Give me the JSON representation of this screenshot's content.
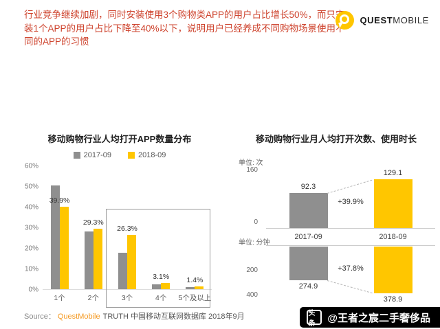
{
  "header": {
    "headline": "行业竞争继续加剧，同时安装使用3个购物类APP的用户占比增长50%，而只安装1个APP的用户占比下降至40%以下，说明用户已经养成不同购物场景使用不同的APP的习惯",
    "logo": {
      "brand_bold": "QUEST",
      "brand_light": "MOBILE"
    }
  },
  "colors": {
    "accent_yellow": "#FFC600",
    "bar_gray": "#8F8F8F",
    "headline_red": "#CE432D",
    "source_brand_orange": "#F59A23"
  },
  "chart_data": [
    {
      "type": "bar",
      "title": "移动购物行业人均打开APP数量分布",
      "categories": [
        "1个",
        "2个",
        "3个",
        "4个",
        "5个及以上"
      ],
      "series": [
        {
          "name": "2017-09",
          "color": "#8F8F8F",
          "values": [
            50.2,
            28.0,
            17.7,
            2.4,
            0.9
          ]
        },
        {
          "name": "2018-09",
          "color": "#FFC600",
          "values": [
            39.9,
            29.3,
            26.3,
            3.1,
            1.4
          ],
          "labels": [
            "39.9%",
            "29.3%",
            "26.3%",
            "3.1%",
            "1.4%"
          ]
        }
      ],
      "y_ticks": [
        "60%",
        "50%",
        "40%",
        "30%",
        "20%",
        "10%",
        "0%"
      ],
      "ylim": [
        0,
        60
      ],
      "grid": false,
      "legend_position": "top",
      "highlight_categories": [
        "3个",
        "4个",
        "5个及以上"
      ]
    },
    {
      "type": "bar",
      "title": "移动购物行业月人均打开次数、使用时长",
      "categories": [
        "2017-09",
        "2018-09"
      ],
      "top": {
        "unit": "单位: 次",
        "ticks": [
          "160",
          "0"
        ],
        "ylim": [
          0,
          160
        ],
        "values": [
          92.3,
          129.1
        ],
        "labels": [
          "92.3",
          "129.1"
        ],
        "growth": "+39.9%"
      },
      "bottom": {
        "unit": "单位: 分钟",
        "ticks": [
          "200",
          "400"
        ],
        "ylim": [
          0,
          400
        ],
        "values": [
          274.9,
          378.9
        ],
        "labels": [
          "274.9",
          "378.9"
        ],
        "growth": "+37.8%"
      }
    }
  ],
  "footer": {
    "source_label": "Source：",
    "source_brand": "QuestMobile",
    "source_text": "TRUTH 中国移动互联网数据库 2018年9月"
  },
  "watermark": {
    "logo": "头条",
    "handle": "@王者之宸二手奢侈品"
  }
}
